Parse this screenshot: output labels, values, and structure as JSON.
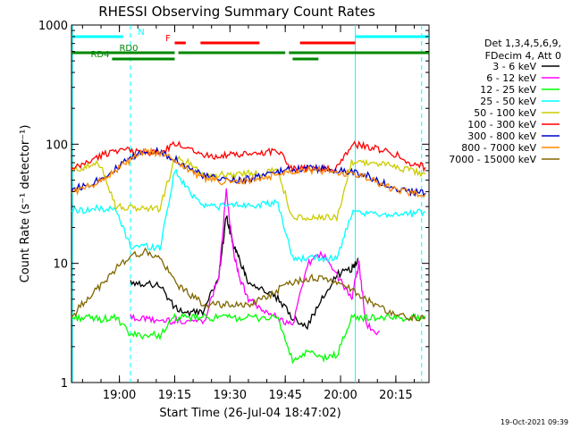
{
  "chart_data": {
    "type": "line",
    "title": "RHESSI Observing Summary Count Rates",
    "xlabel": "Start Time (26-Jul-04 18:47:02)",
    "ylabel": "Count Rate (s⁻¹ detector⁻¹)",
    "yscale": "log",
    "ylim": [
      1,
      1000
    ],
    "xlim_minutes": [
      0,
      97
    ],
    "y_ticks": [
      {
        "value": 1,
        "label": "1"
      },
      {
        "value": 10,
        "label": "10"
      },
      {
        "value": 100,
        "label": "100"
      },
      {
        "value": 1000,
        "label": "1000"
      }
    ],
    "x_ticks": [
      {
        "minute": 13,
        "label": "19:00"
      },
      {
        "minute": 28,
        "label": "19:15"
      },
      {
        "minute": 43,
        "label": "19:30"
      },
      {
        "minute": 58,
        "label": "19:45"
      },
      {
        "minute": 73,
        "label": "20:00"
      },
      {
        "minute": 88,
        "label": "20:15"
      }
    ],
    "legend_header": [
      "Det 1,3,4,5,6,9,",
      "FDecim 4, Att 0"
    ],
    "legend_position": "right",
    "series": [
      {
        "name": "3 - 6 keV",
        "color": "#000000",
        "points": [
          [
            0,
            null
          ],
          [
            4,
            null
          ],
          [
            8,
            null
          ],
          [
            12,
            null
          ],
          [
            16,
            7.0
          ],
          [
            20,
            6.8
          ],
          [
            24,
            6.6
          ],
          [
            28,
            4.2
          ],
          [
            32,
            3.8
          ],
          [
            36,
            4.0
          ],
          [
            40,
            8.0
          ],
          [
            42,
            25.0
          ],
          [
            44,
            14.0
          ],
          [
            46,
            10.0
          ],
          [
            48,
            7.0
          ],
          [
            52,
            6.0
          ],
          [
            56,
            5.0
          ],
          [
            60,
            3.5
          ],
          [
            64,
            3.0
          ],
          [
            68,
            5.0
          ],
          [
            72,
            8.0
          ],
          [
            76,
            9.0
          ],
          [
            78,
            11.0
          ],
          [
            80,
            null
          ],
          [
            84,
            null
          ],
          [
            88,
            null
          ],
          [
            92,
            null
          ],
          [
            96,
            null
          ]
        ]
      },
      {
        "name": "6 - 12 keV",
        "color": "#ff00ff",
        "points": [
          [
            0,
            null
          ],
          [
            4,
            null
          ],
          [
            8,
            null
          ],
          [
            12,
            null
          ],
          [
            16,
            3.5
          ],
          [
            20,
            3.4
          ],
          [
            24,
            3.3
          ],
          [
            28,
            3.3
          ],
          [
            32,
            3.3
          ],
          [
            36,
            3.3
          ],
          [
            40,
            8.0
          ],
          [
            42,
            40.0
          ],
          [
            44,
            12.0
          ],
          [
            46,
            7.0
          ],
          [
            48,
            5.0
          ],
          [
            52,
            4.0
          ],
          [
            56,
            3.5
          ],
          [
            60,
            3.0
          ],
          [
            64,
            10.0
          ],
          [
            68,
            12.0
          ],
          [
            72,
            8.0
          ],
          [
            76,
            5.0
          ],
          [
            78,
            10.0
          ],
          [
            80,
            3.0
          ],
          [
            84,
            2.5
          ],
          [
            88,
            null
          ],
          [
            92,
            null
          ],
          [
            96,
            null
          ]
        ]
      },
      {
        "name": "12 - 25 keV",
        "color": "#00ff00",
        "points": [
          [
            0,
            3.5
          ],
          [
            4,
            3.5
          ],
          [
            8,
            3.4
          ],
          [
            12,
            3.5
          ],
          [
            16,
            2.5
          ],
          [
            20,
            2.5
          ],
          [
            24,
            2.5
          ],
          [
            28,
            3.5
          ],
          [
            32,
            3.5
          ],
          [
            36,
            3.5
          ],
          [
            40,
            3.5
          ],
          [
            44,
            3.5
          ],
          [
            48,
            3.5
          ],
          [
            52,
            3.5
          ],
          [
            56,
            3.5
          ],
          [
            60,
            1.5
          ],
          [
            64,
            1.8
          ],
          [
            68,
            1.6
          ],
          [
            72,
            1.7
          ],
          [
            76,
            3.5
          ],
          [
            80,
            3.5
          ],
          [
            84,
            3.5
          ],
          [
            88,
            3.5
          ],
          [
            92,
            3.5
          ],
          [
            96,
            3.5
          ]
        ]
      },
      {
        "name": "25 - 50 keV",
        "color": "#00ffff",
        "points": [
          [
            0,
            28
          ],
          [
            4,
            28
          ],
          [
            8,
            29
          ],
          [
            12,
            28
          ],
          [
            16,
            14
          ],
          [
            20,
            14
          ],
          [
            24,
            13.5
          ],
          [
            28,
            60
          ],
          [
            32,
            40
          ],
          [
            36,
            31
          ],
          [
            40,
            30
          ],
          [
            44,
            31
          ],
          [
            48,
            31
          ],
          [
            52,
            31
          ],
          [
            56,
            32
          ],
          [
            60,
            11
          ],
          [
            64,
            11
          ],
          [
            68,
            11
          ],
          [
            72,
            11
          ],
          [
            76,
            26
          ],
          [
            80,
            26
          ],
          [
            84,
            26
          ],
          [
            88,
            26
          ],
          [
            92,
            26
          ],
          [
            96,
            27
          ]
        ]
      },
      {
        "name": "50 - 100 keV",
        "color": "#cccc00",
        "points": [
          [
            0,
            60
          ],
          [
            4,
            65
          ],
          [
            8,
            68
          ],
          [
            12,
            30
          ],
          [
            16,
            29
          ],
          [
            20,
            29
          ],
          [
            24,
            29
          ],
          [
            28,
            75
          ],
          [
            32,
            70
          ],
          [
            36,
            55
          ],
          [
            40,
            55
          ],
          [
            44,
            56
          ],
          [
            48,
            57
          ],
          [
            52,
            58
          ],
          [
            56,
            60
          ],
          [
            60,
            24
          ],
          [
            64,
            24
          ],
          [
            68,
            24
          ],
          [
            72,
            24
          ],
          [
            76,
            72
          ],
          [
            80,
            70
          ],
          [
            84,
            68
          ],
          [
            88,
            65
          ],
          [
            92,
            60
          ],
          [
            96,
            56
          ]
        ]
      },
      {
        "name": "100 - 300 keV",
        "color": "#ff0000",
        "points": [
          [
            0,
            60
          ],
          [
            4,
            70
          ],
          [
            8,
            80
          ],
          [
            12,
            90
          ],
          [
            16,
            88
          ],
          [
            20,
            86
          ],
          [
            24,
            84
          ],
          [
            28,
            100
          ],
          [
            32,
            95
          ],
          [
            36,
            80
          ],
          [
            40,
            80
          ],
          [
            44,
            81
          ],
          [
            48,
            82
          ],
          [
            52,
            85
          ],
          [
            56,
            90
          ],
          [
            60,
            62
          ],
          [
            64,
            62
          ],
          [
            68,
            62
          ],
          [
            72,
            63
          ],
          [
            76,
            100
          ],
          [
            80,
            95
          ],
          [
            84,
            90
          ],
          [
            88,
            82
          ],
          [
            92,
            70
          ],
          [
            96,
            64
          ]
        ]
      },
      {
        "name": "300 - 800 keV",
        "color": "#0000cc",
        "points": [
          [
            0,
            42
          ],
          [
            4,
            45
          ],
          [
            8,
            52
          ],
          [
            12,
            62
          ],
          [
            16,
            76
          ],
          [
            20,
            88
          ],
          [
            24,
            86
          ],
          [
            28,
            76
          ],
          [
            32,
            62
          ],
          [
            36,
            54
          ],
          [
            40,
            51
          ],
          [
            44,
            50
          ],
          [
            48,
            51
          ],
          [
            52,
            54
          ],
          [
            56,
            58
          ],
          [
            60,
            62
          ],
          [
            64,
            63
          ],
          [
            68,
            62
          ],
          [
            72,
            60
          ],
          [
            76,
            58
          ],
          [
            80,
            55
          ],
          [
            84,
            48
          ],
          [
            88,
            42
          ],
          [
            92,
            40
          ],
          [
            96,
            39
          ]
        ]
      },
      {
        "name": "800 - 7000 keV",
        "color": "#ff8800",
        "points": [
          [
            0,
            40
          ],
          [
            4,
            43
          ],
          [
            8,
            50
          ],
          [
            12,
            60
          ],
          [
            16,
            74
          ],
          [
            20,
            86
          ],
          [
            24,
            84
          ],
          [
            28,
            74
          ],
          [
            32,
            60
          ],
          [
            36,
            52
          ],
          [
            40,
            49
          ],
          [
            44,
            48
          ],
          [
            48,
            49
          ],
          [
            52,
            52
          ],
          [
            56,
            56
          ],
          [
            60,
            60
          ],
          [
            64,
            61
          ],
          [
            68,
            60
          ],
          [
            72,
            58
          ],
          [
            76,
            56
          ],
          [
            80,
            53
          ],
          [
            84,
            46
          ],
          [
            88,
            41
          ],
          [
            92,
            39
          ],
          [
            96,
            38
          ]
        ]
      },
      {
        "name": "7000 - 15000 keV",
        "color": "#806600",
        "points": [
          [
            0,
            3.5
          ],
          [
            4,
            5.0
          ],
          [
            8,
            6.5
          ],
          [
            12,
            9.0
          ],
          [
            16,
            11.5
          ],
          [
            20,
            12.5
          ],
          [
            24,
            11.0
          ],
          [
            28,
            7.0
          ],
          [
            32,
            5.5
          ],
          [
            36,
            4.5
          ],
          [
            40,
            4.5
          ],
          [
            44,
            4.5
          ],
          [
            48,
            4.5
          ],
          [
            52,
            5.0
          ],
          [
            56,
            6.0
          ],
          [
            60,
            7.0
          ],
          [
            64,
            7.5
          ],
          [
            68,
            7.5
          ],
          [
            72,
            7.0
          ],
          [
            76,
            6.0
          ],
          [
            80,
            5.0
          ],
          [
            84,
            4.2
          ],
          [
            88,
            3.8
          ],
          [
            92,
            3.5
          ],
          [
            96,
            3.5
          ]
        ]
      }
    ],
    "state_bars": [
      {
        "label": "N",
        "color": "#00ffff",
        "segments": [
          [
            0,
            14
          ],
          [
            77,
            97
          ]
        ]
      },
      {
        "label": "F",
        "color": "#ff0000",
        "segments": [
          [
            28,
            31
          ],
          [
            35,
            51
          ],
          [
            62,
            77
          ]
        ]
      },
      {
        "label": "RD0",
        "color": "#008800",
        "segments": [
          [
            0,
            28
          ],
          [
            29,
            58
          ],
          [
            59,
            97
          ]
        ]
      },
      {
        "label": "RD4",
        "color": "#008800",
        "segments": [
          [
            11,
            28
          ],
          [
            60,
            67
          ]
        ]
      }
    ],
    "night_transitions": [
      {
        "minute": 0,
        "style": "solid"
      },
      {
        "minute": 16,
        "style": "dashed"
      },
      {
        "minute": 77,
        "style": "solid"
      },
      {
        "minute": 95,
        "style": "dashed"
      }
    ]
  },
  "footer": {
    "date_stamp": "19-Oct-2021 09:39"
  }
}
